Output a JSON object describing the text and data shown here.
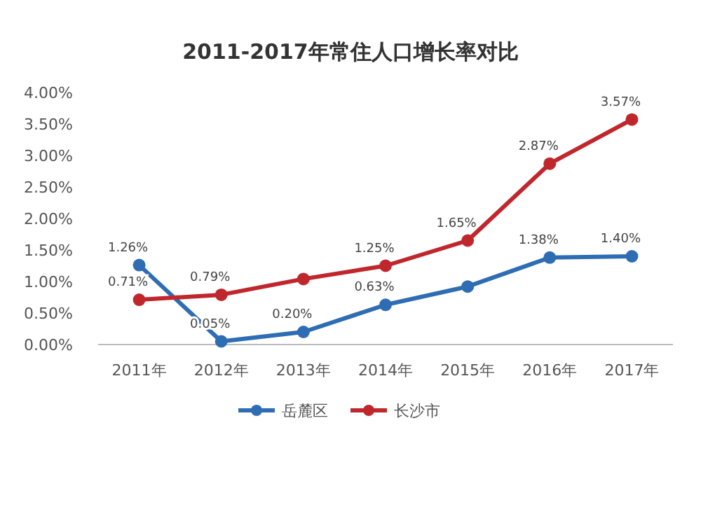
{
  "chart_data": {
    "type": "line",
    "title": "2011-2017年常住人口增长率对比",
    "categories": [
      "2011年",
      "2012年",
      "2013年",
      "2014年",
      "2015年",
      "2016年",
      "2017年"
    ],
    "series": [
      {
        "name": "岳麓区",
        "color": "#2e6db4",
        "values": [
          1.26,
          0.05,
          0.2,
          0.63,
          0.92,
          1.38,
          1.4
        ],
        "value_labels": [
          "1.26%",
          "0.05%",
          "0.20%",
          "0.63%",
          null,
          "1.38%",
          "1.40%"
        ]
      },
      {
        "name": "长沙市",
        "color": "#c0272d",
        "values": [
          0.71,
          0.79,
          1.04,
          1.25,
          1.65,
          2.87,
          3.57
        ],
        "value_labels": [
          "0.71%",
          "0.79%",
          null,
          "1.25%",
          "1.65%",
          "2.87%",
          "3.57%"
        ]
      }
    ],
    "ylim": [
      0,
      4
    ],
    "yticks": [
      {
        "value": 0,
        "label": "0.00%"
      },
      {
        "value": 0.5,
        "label": "0.50%"
      },
      {
        "value": 1,
        "label": "1.00%"
      },
      {
        "value": 1.5,
        "label": "1.50%"
      },
      {
        "value": 2,
        "label": "2.00%"
      },
      {
        "value": 2.5,
        "label": "2.50%"
      },
      {
        "value": 3,
        "label": "3.00%"
      },
      {
        "value": 3.5,
        "label": "3.50%"
      },
      {
        "value": 4,
        "label": "4.00%"
      }
    ],
    "grid": false,
    "legend": "bottom",
    "marker": "circle",
    "line_style": "solid"
  }
}
